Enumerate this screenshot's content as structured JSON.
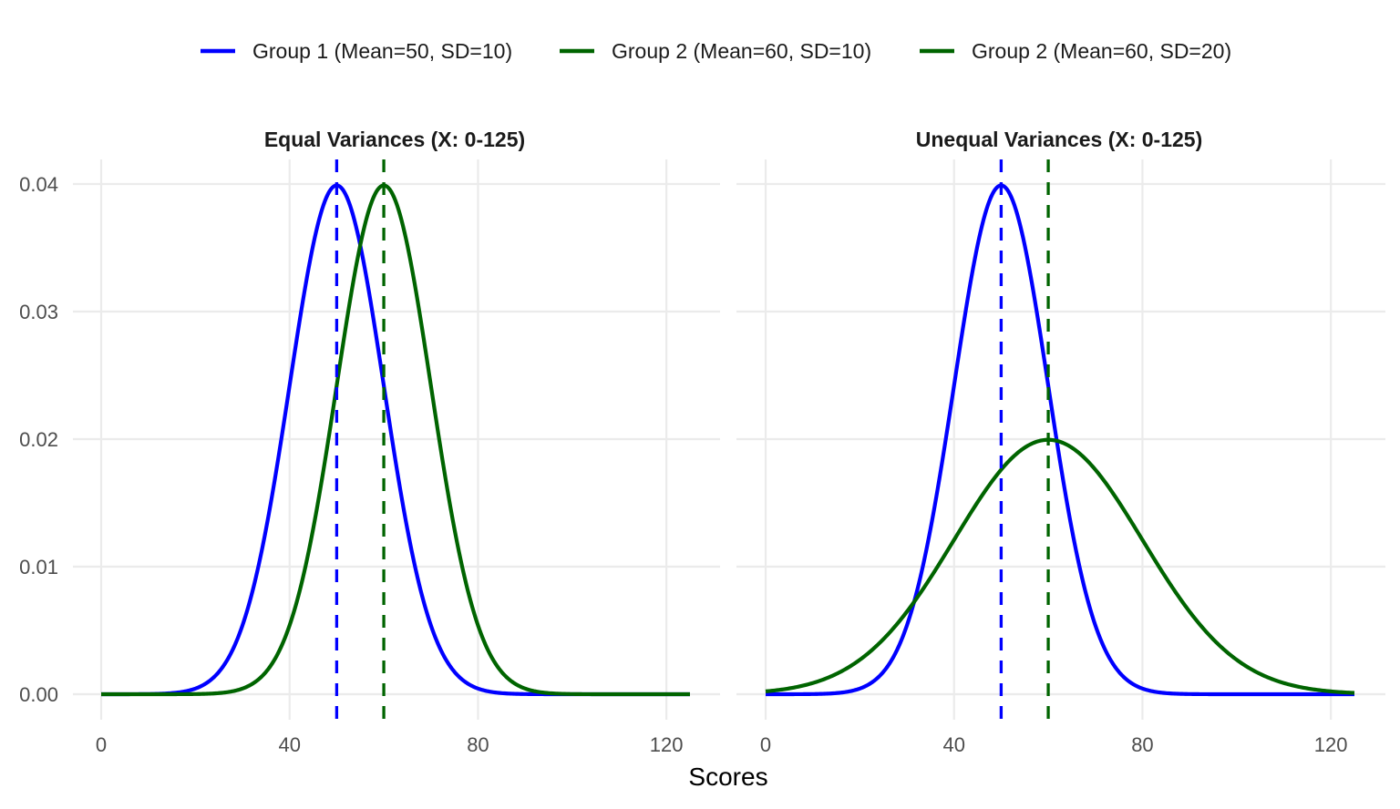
{
  "chart_data": {
    "type": "line",
    "xlabel": "Scores",
    "ylabel": "",
    "xlim": [
      0,
      125
    ],
    "ylim": [
      0,
      0.04
    ],
    "x_ticks": [
      "0",
      "40",
      "80",
      "120"
    ],
    "x_tick_values": [
      0,
      40,
      80,
      120
    ],
    "y_ticks": [
      "0.00",
      "0.01",
      "0.02",
      "0.03",
      "0.04"
    ],
    "y_tick_values": [
      0,
      0.01,
      0.02,
      0.03,
      0.04
    ],
    "grid": true,
    "legend_position": "top",
    "legend": [
      {
        "label": "Group 1 (Mean=50, SD=10)",
        "color": "#0000ff"
      },
      {
        "label": "Group 2 (Mean=60, SD=10)",
        "color": "#006400"
      },
      {
        "label": "Group 2 (Mean=60, SD=20)",
        "color": "#006400"
      }
    ],
    "panels": [
      {
        "title": "Equal Variances (X: 0-125)",
        "series": [
          {
            "name": "Group 1 (Mean=50, SD=10)",
            "distribution": "normal",
            "mean": 50,
            "sd": 10,
            "x_range": [
              0,
              125
            ],
            "color": "#0000ff"
          },
          {
            "name": "Group 2 (Mean=60, SD=10)",
            "distribution": "normal",
            "mean": 60,
            "sd": 10,
            "x_range": [
              0,
              125
            ],
            "color": "#006400"
          }
        ],
        "mean_lines": [
          {
            "x": 50,
            "color": "#0000ff",
            "style": "dashed"
          },
          {
            "x": 60,
            "color": "#006400",
            "style": "dashed"
          }
        ]
      },
      {
        "title": "Unequal Variances (X: 0-125)",
        "series": [
          {
            "name": "Group 1 (Mean=50, SD=10)",
            "distribution": "normal",
            "mean": 50,
            "sd": 10,
            "x_range": [
              0,
              125
            ],
            "color": "#0000ff"
          },
          {
            "name": "Group 2 (Mean=60, SD=20)",
            "distribution": "normal",
            "mean": 60,
            "sd": 20,
            "x_range": [
              0,
              125
            ],
            "color": "#006400"
          }
        ],
        "mean_lines": [
          {
            "x": 50,
            "color": "#0000ff",
            "style": "dashed"
          },
          {
            "x": 60,
            "color": "#006400",
            "style": "dashed"
          }
        ]
      }
    ]
  }
}
